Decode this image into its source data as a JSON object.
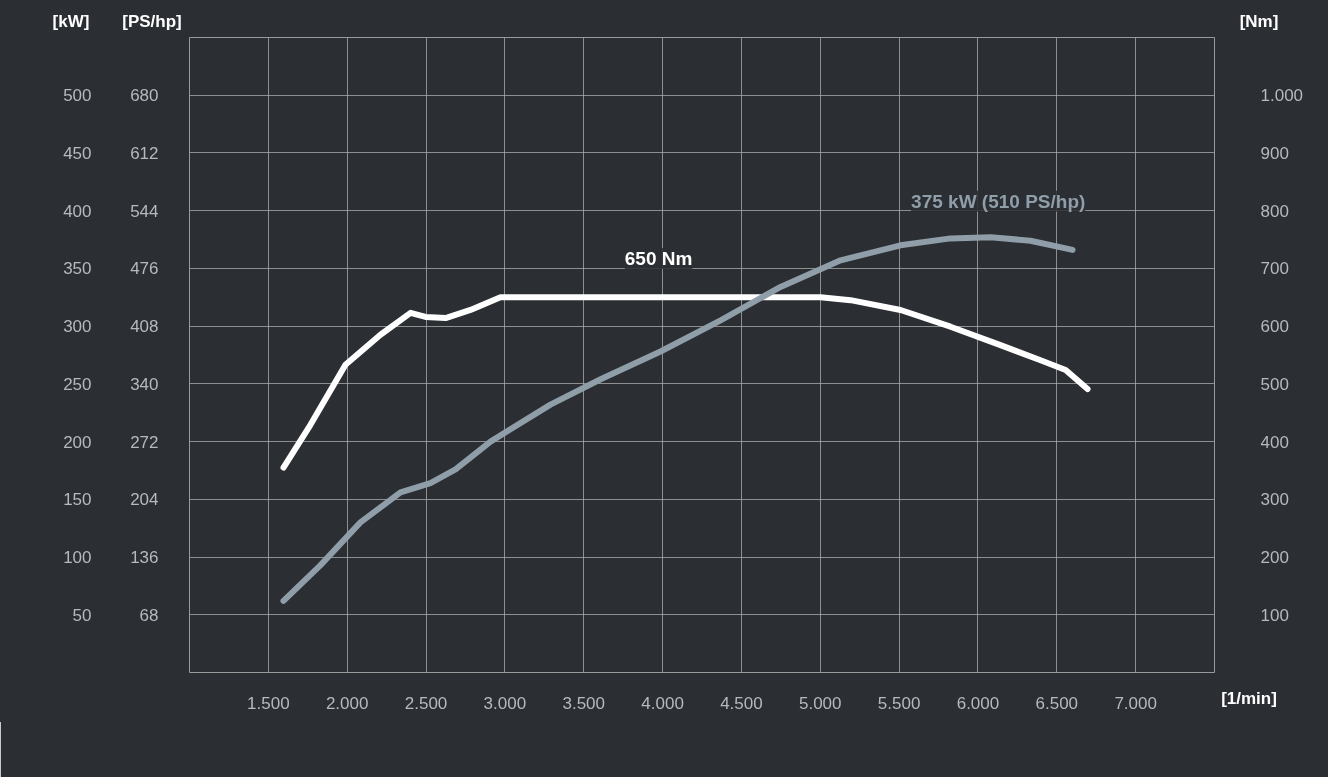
{
  "chart_data": {
    "type": "line",
    "xlabel": "[1/min]",
    "ylabel": "[kW]",
    "y3label": "[PS/hp]",
    "y2label": "[Nm]",
    "xlim": [
      1000,
      7500
    ],
    "xticks": [
      {
        "value": 1500,
        "label": "1.500"
      },
      {
        "value": 2000,
        "label": "2.000"
      },
      {
        "value": 2500,
        "label": "2.500"
      },
      {
        "value": 3000,
        "label": "3.000"
      },
      {
        "value": 3500,
        "label": "3.500"
      },
      {
        "value": 4000,
        "label": "4.000"
      },
      {
        "value": 4500,
        "label": "4.500"
      },
      {
        "value": 5000,
        "label": "5.000"
      },
      {
        "value": 5500,
        "label": "5.500"
      },
      {
        "value": 6000,
        "label": "6.000"
      },
      {
        "value": 6500,
        "label": "6.500"
      },
      {
        "value": 7000,
        "label": "7.000"
      }
    ],
    "ylim": [
      0,
      550
    ],
    "yticks": [
      50,
      100,
      150,
      200,
      250,
      300,
      350,
      400,
      450,
      500
    ],
    "y3lim": [
      0,
      748
    ],
    "y3ticks": [
      68,
      136,
      204,
      272,
      340,
      408,
      476,
      544,
      612,
      680
    ],
    "y2lim": [
      0,
      1100
    ],
    "y2ticks": [
      100,
      200,
      300,
      400,
      500,
      600,
      700,
      800,
      900,
      {
        "value": 1000,
        "label": "1.000"
      }
    ],
    "grid": true,
    "line_style": "solid",
    "series": [
      {
        "color": "#ffffff",
        "axis": "y2",
        "x": [
          1596,
          1767,
          1989,
          2211,
          2402,
          2497,
          2624,
          2782,
          2972,
          5002,
          5192,
          5509,
          5826,
          6143,
          6397,
          6556,
          6695
        ],
        "values": [
          355,
          429,
          533,
          585,
          623,
          616,
          614,
          628,
          650,
          650,
          645,
          628,
          599,
          567,
          541,
          524,
          491
        ]
      },
      {
        "color": "#8f9ea8",
        "x": [
          1596,
          1831,
          2084,
          2338,
          2528,
          2687,
          2909,
          3289,
          3607,
          3987,
          4368,
          4748,
          5129,
          5509,
          5826,
          6080,
          6333,
          6600
        ],
        "values": [
          62,
          93,
          130,
          156,
          164,
          176,
          200,
          232,
          254,
          278,
          305,
          334,
          357,
          370,
          376,
          377,
          374,
          366
        ]
      }
    ],
    "annotations": [
      "650 Nm",
      "375 kW (510 PS/hp)"
    ]
  }
}
